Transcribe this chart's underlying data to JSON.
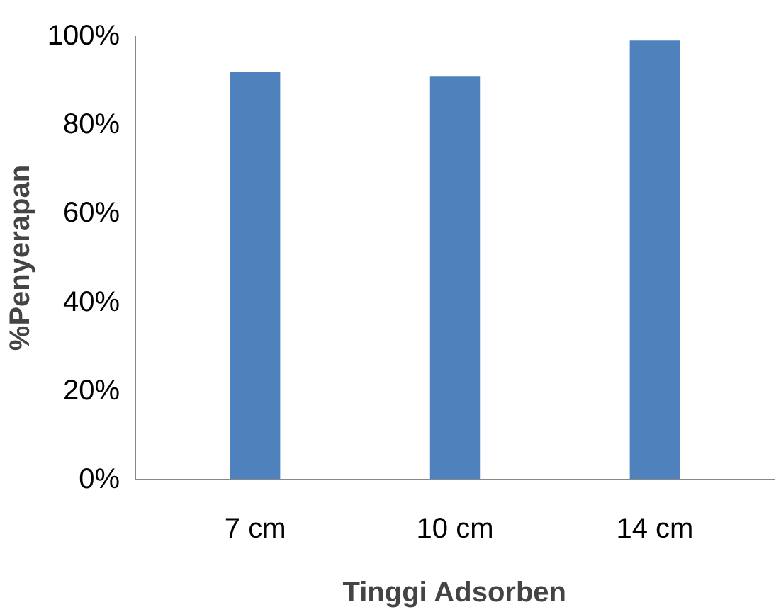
{
  "chart_data": {
    "type": "bar",
    "xlabel": "Tinggi Adsorben",
    "ylabel": "%Penyerapan",
    "categories": [
      "7 cm",
      "10 cm",
      "14 cm"
    ],
    "values": [
      0.92,
      0.91,
      0.99
    ],
    "color": "#4f81bd",
    "ylim": [
      0,
      1
    ],
    "yticks": [
      {
        "value": 0,
        "label": "0%"
      },
      {
        "value": 0.2,
        "label": "20%"
      },
      {
        "value": 0.4,
        "label": "40%"
      },
      {
        "value": 0.6,
        "label": "60%"
      },
      {
        "value": 0.8,
        "label": "80%"
      },
      {
        "value": 1,
        "label": "100%"
      }
    ],
    "grid": false
  }
}
